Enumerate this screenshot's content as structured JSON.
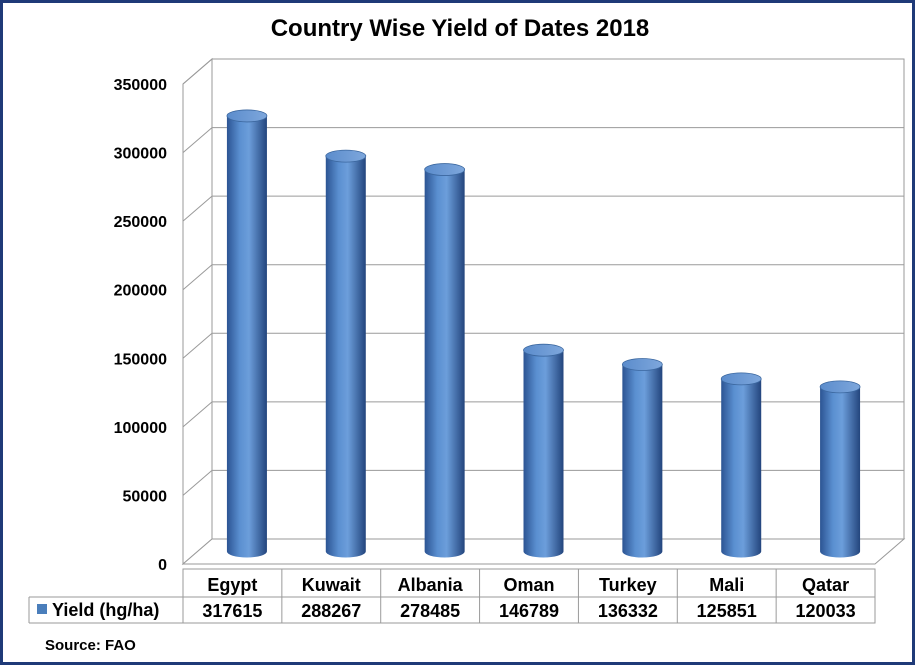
{
  "chart_data": {
    "type": "bar",
    "title": "Country Wise Yield of Dates 2018",
    "categories": [
      "Egypt",
      "Kuwait",
      "Albania",
      "Oman",
      "Turkey",
      "Mali",
      "Qatar"
    ],
    "series": [
      {
        "name": "Yield (hg/ha)",
        "values": [
          317615,
          288267,
          278485,
          146789,
          136332,
          125851,
          120033
        ],
        "color": "#4a7ebb"
      }
    ],
    "yticks": [
      "0",
      "50000",
      "100000",
      "150000",
      "200000",
      "250000",
      "300000",
      "350000"
    ],
    "ylim": [
      0,
      350000
    ],
    "grid": true,
    "legend": "data-table",
    "data_table": true,
    "table_values": [
      "317615",
      "288267",
      "278485",
      "146789",
      "136332",
      "125851",
      "120033"
    ]
  },
  "source": "Source: FAO",
  "colors": {
    "frame": "#1f3a78",
    "bar": "#4a7ebb",
    "bar_dark": "#2c5493",
    "bar_light": "#8eb4e3"
  }
}
